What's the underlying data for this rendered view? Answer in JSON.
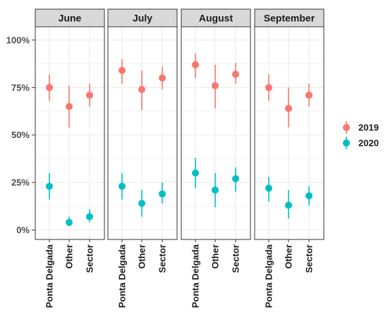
{
  "chart_data": {
    "type": "scatter",
    "subtype": "point-range (dot with error bars), faceted by month",
    "facets": [
      "June",
      "July",
      "August",
      "September"
    ],
    "categories": [
      "Ponta Delgada",
      "Other",
      "Sector"
    ],
    "y_ticks": [
      "0%",
      "25%",
      "50%",
      "75%",
      "100%"
    ],
    "ylim": [
      -5,
      107
    ],
    "grid": true,
    "legend_position": "right",
    "series": [
      {
        "name": "2019",
        "color": "#f8766d",
        "facets": {
          "June": {
            "values": [
              75,
              65,
              71
            ],
            "lower": [
              68,
              54,
              65
            ],
            "upper": [
              82,
              76,
              77
            ]
          },
          "July": {
            "values": [
              84,
              74,
              80
            ],
            "lower": [
              77,
              63,
              74
            ],
            "upper": [
              90,
              84,
              86
            ]
          },
          "August": {
            "values": [
              87,
              76,
              82
            ],
            "lower": [
              80,
              64,
              77
            ],
            "upper": [
              93,
              87,
              88
            ]
          },
          "September": {
            "values": [
              75,
              64,
              71
            ],
            "lower": [
              68,
              54,
              65
            ],
            "upper": [
              82,
              75,
              77
            ]
          }
        }
      },
      {
        "name": "2020",
        "color": "#00bfc4",
        "facets": {
          "June": {
            "values": [
              23,
              4,
              7
            ],
            "lower": [
              16,
              2,
              4
            ],
            "upper": [
              30,
              7,
              11
            ]
          },
          "July": {
            "values": [
              23,
              14,
              19
            ],
            "lower": [
              16,
              7,
              14
            ],
            "upper": [
              30,
              21,
              25
            ]
          },
          "August": {
            "values": [
              30,
              21,
              27
            ],
            "lower": [
              22,
              12,
              20
            ],
            "upper": [
              38,
              30,
              33
            ]
          },
          "September": {
            "values": [
              22,
              13,
              18
            ],
            "lower": [
              15,
              6,
              13
            ],
            "upper": [
              28,
              21,
              23
            ]
          }
        }
      }
    ]
  }
}
